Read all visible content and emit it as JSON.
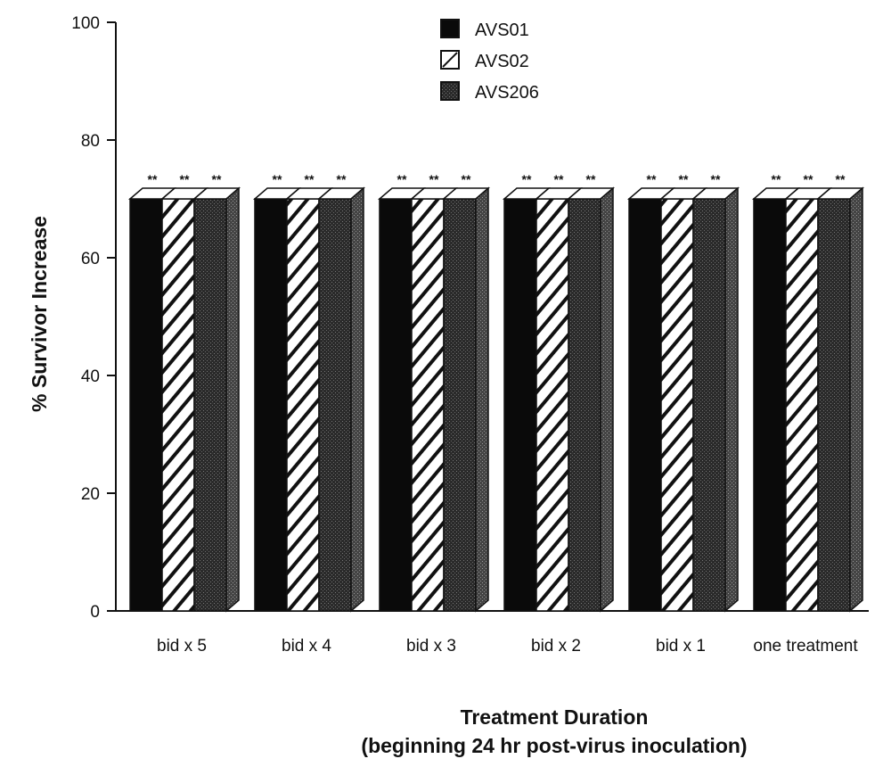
{
  "chart_data": {
    "type": "bar",
    "categories": [
      "bid x 5",
      "bid x 4",
      "bid x 3",
      "bid x 2",
      "bid x 1",
      "one treatment"
    ],
    "series": [
      {
        "name": "AVS01",
        "values": [
          70,
          70,
          70,
          70,
          70,
          70
        ],
        "pattern": "solid-black"
      },
      {
        "name": "AVS02",
        "values": [
          70,
          70,
          70,
          70,
          70,
          70
        ],
        "pattern": "hatched"
      },
      {
        "name": "AVS206",
        "values": [
          70,
          70,
          70,
          70,
          70,
          70
        ],
        "pattern": "stipple-dark"
      }
    ],
    "annotations": [
      "**"
    ],
    "xlabel": "Treatment Duration",
    "xlabel_sub": "(beginning 24 hr post-virus inoculation)",
    "ylabel": "% Survivor Increase",
    "ylim": [
      0,
      100
    ],
    "yticks": [
      0,
      20,
      40,
      60,
      80,
      100
    ],
    "legend_position": "top-center",
    "style": "3d-bar",
    "grid": false
  }
}
